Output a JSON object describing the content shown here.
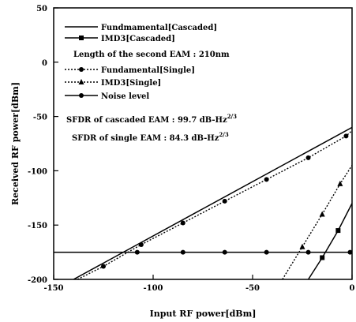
{
  "chart_data": {
    "type": "line",
    "xlabel": "Input RF power[dBm]",
    "ylabel": "Received RF power[dBm]",
    "xlim": [
      -150,
      0
    ],
    "ylim": [
      -200,
      50
    ],
    "xticks": [
      -150,
      -100,
      -50,
      0
    ],
    "yticks": [
      50,
      0,
      -50,
      -100,
      -150,
      -200
    ],
    "grid": false,
    "legend_placement": "top-left",
    "annotations": [
      {
        "id": "length",
        "text": "Length of the second EAM : 210nm"
      },
      {
        "id": "sfdr_cascaded",
        "text": "SFDR of cascaded EAM : 99.7 dB-Hz",
        "sup": "2/3"
      },
      {
        "id": "sfdr_single",
        "text": "SFDR of single EAM : 84.3 dB-Hz",
        "sup": "2/3"
      }
    ],
    "series": [
      {
        "name": "Fundmamental[Cascaded]",
        "style": "solid",
        "marker": "none",
        "x": [
          -140,
          0
        ],
        "y": [
          -200,
          -60
        ]
      },
      {
        "name": "IMD3[Cascaded]",
        "style": "solid",
        "marker": "square",
        "x": [
          -22,
          -15,
          -7,
          0
        ],
        "y": [
          -200,
          -180,
          -155,
          -130
        ]
      },
      {
        "name": "Fundamental[Single]",
        "style": "dotted",
        "marker": "circle",
        "x": [
          -138,
          -125,
          -106,
          -85,
          -64,
          -43,
          -22,
          -3,
          0
        ],
        "y": [
          -200,
          -188,
          -168,
          -148,
          -128,
          -108,
          -88,
          -68,
          -63
        ]
      },
      {
        "name": "IMD3[Single]",
        "style": "dotted",
        "marker": "triangle",
        "x": [
          -35,
          -25,
          -15,
          -6,
          0
        ],
        "y": [
          -200,
          -170,
          -140,
          -112,
          -95
        ]
      },
      {
        "name": "Noise level",
        "style": "solid",
        "marker": "circle",
        "x": [
          -150,
          -108,
          -85,
          -64,
          -43,
          -22,
          -1
        ],
        "y": [
          -175,
          -175,
          -175,
          -175,
          -175,
          -175,
          -175
        ]
      }
    ]
  }
}
